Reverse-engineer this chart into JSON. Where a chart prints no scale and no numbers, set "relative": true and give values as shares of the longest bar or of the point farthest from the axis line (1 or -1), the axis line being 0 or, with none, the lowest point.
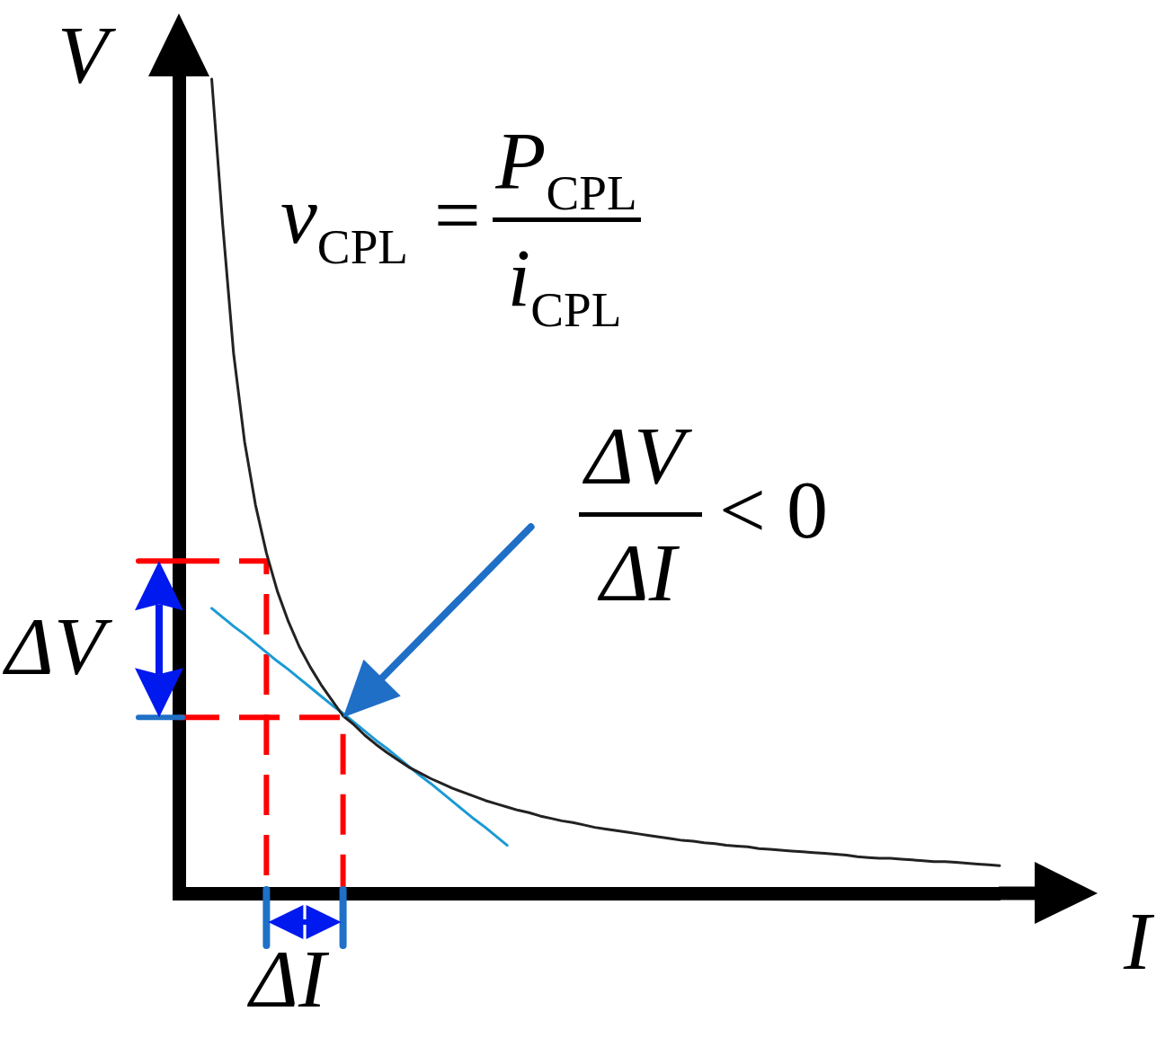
{
  "chart_data": {
    "type": "line",
    "relative": true,
    "xlabel": "I",
    "ylabel": "V",
    "legend": false,
    "annotations": [
      "v$_{CPL}$ =",
      "P$_{CPL}$",
      "i$_{CPL}$",
      "ΔV",
      "ΔI",
      "< 0",
      "ΔV",
      "ΔI"
    ],
    "categories": [
      null,
      null,
      null,
      null,
      null,
      null,
      null,
      null,
      null,
      null,
      null,
      null,
      null,
      null,
      null,
      null,
      null,
      null,
      null,
      null,
      null,
      null,
      null,
      null,
      null,
      null,
      null,
      null,
      null,
      null,
      null,
      null,
      null,
      null,
      null,
      null,
      null,
      null,
      null,
      null,
      null,
      null,
      null,
      null,
      null,
      null,
      null,
      null,
      null,
      null,
      null,
      null,
      null,
      null,
      null,
      null,
      null,
      null,
      null,
      null,
      null,
      null,
      null,
      null,
      null,
      null,
      null,
      null,
      null,
      null,
      null,
      null,
      null,
      null,
      null,
      null
    ],
    "series": [
      {
        "type": "line",
        "color": "#222222",
        "values": [
          null,
          null,
          null,
          1,
          0.822,
          0.663,
          0.555,
          0.477,
          0.418,
          0.371,
          0.334,
          0.303,
          0.278,
          0.256,
          0.237,
          0.218,
          0.207,
          0.194,
          0.183,
          0.173,
          0.164,
          0.155,
          0.148,
          0.141,
          0.135,
          0.129,
          0.124,
          0.119,
          0.114,
          0.11,
          0.106,
          0.102,
          0.099,
          0.095,
          0.092,
          0.089,
          0.087,
          0.084,
          0.081,
          0.079,
          0.077,
          0.075,
          0.073,
          0.071,
          0.069,
          0.067,
          0.065,
          0.064,
          0.062,
          0.061,
          0.059,
          0.058,
          0.057,
          0.055,
          0.054,
          0.053,
          0.052,
          0.051,
          0.05,
          0.049,
          0.048,
          0.047,
          0.045,
          0.044,
          0.043,
          0.043,
          0.042,
          0.041,
          0.04,
          0.039,
          0.039,
          0.038,
          0.037,
          0.036,
          0.035,
          0.034
        ]
      },
      {
        "type": "line",
        "color": "#1b9ad4",
        "values": [
          null,
          null,
          null,
          0.35,
          0.339,
          0.328,
          0.318,
          0.307,
          0.296,
          0.285,
          0.275,
          0.264,
          0.253,
          0.242,
          0.231,
          0.221,
          0.21,
          0.199,
          0.188,
          0.178,
          0.167,
          0.156,
          0.145,
          0.135,
          0.124,
          0.113,
          0.102,
          0.091,
          0.081,
          0.07,
          0.059,
          null,
          null,
          null,
          null,
          null,
          null,
          null,
          null,
          null,
          null,
          null,
          null,
          null,
          null,
          null,
          null,
          null,
          null,
          null,
          null,
          null,
          null,
          null,
          null,
          null,
          null,
          null,
          null,
          null,
          null,
          null,
          null,
          null,
          null,
          null,
          null,
          null,
          null,
          null,
          null,
          null,
          null,
          null,
          null,
          null
        ]
      },
      {
        "type": "step",
        "color": "#ff0000",
        "line_style": "dashed",
        "values": [
          0.408,
          0.408,
          0.408,
          0.408,
          0.408,
          0.408,
          0.408,
          0.408,
          0,
          null,
          null,
          null,
          null,
          null,
          null,
          null,
          null,
          null,
          null,
          null,
          null,
          null,
          null,
          null,
          null,
          null,
          null,
          null,
          null,
          null,
          null,
          null,
          null,
          null,
          null,
          null,
          null,
          null,
          null,
          null,
          null,
          null,
          null,
          null,
          null,
          null,
          null,
          null,
          null,
          null,
          null,
          null,
          null,
          null,
          null,
          null,
          null,
          null,
          null,
          null,
          null,
          null,
          null,
          null,
          null,
          null,
          null,
          null,
          null,
          null,
          null,
          null,
          null,
          null,
          null,
          null
        ]
      },
      {
        "type": "step",
        "color": "#ff0000",
        "line_style": "dashed",
        "values": [
          0.216,
          0.216,
          0.216,
          0.216,
          0.216,
          0.216,
          0.216,
          0.216,
          0.216,
          0.216,
          0.216,
          0.216,
          0.216,
          0.216,
          0.216,
          0,
          null,
          null,
          null,
          null,
          null,
          null,
          null,
          null,
          null,
          null,
          null,
          null,
          null,
          null,
          null,
          null,
          null,
          null,
          null,
          null,
          null,
          null,
          null,
          null,
          null,
          null,
          null,
          null,
          null,
          null,
          null,
          null,
          null,
          null,
          null,
          null,
          null,
          null,
          null,
          null,
          null,
          null,
          null,
          null,
          null,
          null,
          null,
          null,
          null,
          null,
          null,
          null,
          null,
          null,
          null,
          null,
          null,
          null,
          null,
          null
        ]
      }
    ]
  }
}
